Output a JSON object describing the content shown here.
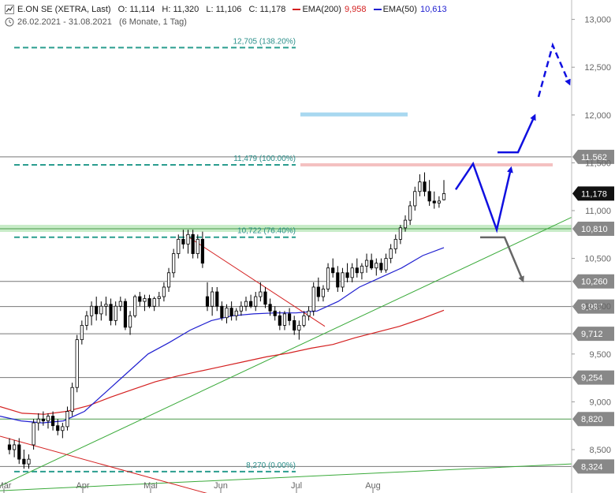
{
  "header": {
    "title": "E.ON SE (XETRA, Last)",
    "open": "O: 11,114",
    "high": "H: 11,320",
    "low": "L: 11,106",
    "close": "C: 11,178",
    "ema200_label": "EMA(200)",
    "ema200_value": "9,958",
    "ema50_label": "EMA(50)",
    "ema50_value": "10,613",
    "date_range": "26.02.2021 - 31.08.2021",
    "period": "(6 Monate, 1 Tag)"
  },
  "colors": {
    "candle_up": "#ffffff",
    "candle_down": "#000000",
    "ema200": "#d42020",
    "ema50": "#2020d0",
    "fib": "#2a9d8f",
    "support_trend": "#3aaa3a",
    "resistance_trend": "#d42020",
    "forecast_up": "#1010e0",
    "forecast_down": "#666666",
    "zone_resistance": "#f4c0c0",
    "zone_target": "#a8d8f0",
    "zone_support": "#c8ecc8"
  },
  "chart_data": {
    "type": "candlestick",
    "title": "E.ON SE (XETRA, Last)",
    "x_range": [
      "2021-02-26",
      "2021-08-31"
    ],
    "ylim": [
      8.25,
      13.2
    ],
    "y_ticks": [
      "13,000",
      "12,500",
      "12,000",
      "11,500",
      "11,000",
      "10,500",
      "10,000",
      "9,500",
      "9,000",
      "8,500"
    ],
    "x_ticks": [
      "Mär",
      "Apr",
      "Mai",
      "Jun",
      "Jul",
      "Aug"
    ],
    "levels": [
      {
        "value": 11.562,
        "label": "11,562"
      },
      {
        "value": 11.178,
        "label": "11,178",
        "current": true
      },
      {
        "value": 10.81,
        "label": "10,810"
      },
      {
        "value": 10.26,
        "label": "10,260"
      },
      {
        "value": 9.997,
        "label": "9,997"
      },
      {
        "value": 9.712,
        "label": "9,712"
      },
      {
        "value": 9.254,
        "label": "9,254"
      },
      {
        "value": 8.82,
        "label": "8,820"
      },
      {
        "value": 8.324,
        "label": "8,324"
      }
    ],
    "fibonacci": [
      {
        "value": 12.705,
        "label": "12,705 (138.20%)"
      },
      {
        "value": 11.479,
        "label": "11,479 (100.00%)"
      },
      {
        "value": 10.722,
        "label": "10,722 (76.40%)"
      },
      {
        "value": 8.27,
        "label": "8,270 (0.00%)"
      }
    ],
    "candles": [
      [
        8.55,
        8.62,
        8.45,
        8.5
      ],
      [
        8.5,
        8.6,
        8.42,
        8.55
      ],
      [
        8.55,
        8.62,
        8.35,
        8.4
      ],
      [
        8.4,
        8.5,
        8.3,
        8.35
      ],
      [
        8.35,
        8.45,
        8.3,
        8.4
      ],
      [
        8.55,
        8.82,
        8.5,
        8.78
      ],
      [
        8.78,
        8.88,
        8.7,
        8.82
      ],
      [
        8.82,
        8.9,
        8.75,
        8.8
      ],
      [
        8.8,
        8.88,
        8.72,
        8.85
      ],
      [
        8.85,
        8.9,
        8.7,
        8.75
      ],
      [
        8.75,
        8.82,
        8.65,
        8.7
      ],
      [
        8.7,
        8.78,
        8.62,
        8.74
      ],
      [
        8.74,
        8.95,
        8.7,
        8.9
      ],
      [
        8.9,
        9.2,
        8.85,
        9.15
      ],
      [
        9.15,
        9.7,
        9.1,
        9.65
      ],
      [
        9.65,
        9.85,
        9.6,
        9.8
      ],
      [
        9.8,
        9.95,
        9.75,
        9.9
      ],
      [
        9.9,
        10.05,
        9.8,
        10.0
      ],
      [
        10.0,
        10.1,
        9.85,
        9.92
      ],
      [
        9.92,
        10.05,
        9.85,
        10.0
      ],
      [
        10.0,
        10.1,
        9.9,
        10.02
      ],
      [
        10.02,
        10.08,
        9.8,
        9.85
      ],
      [
        9.85,
        10.05,
        9.8,
        10.0
      ],
      [
        10.0,
        10.1,
        9.95,
        10.05
      ],
      [
        10.05,
        10.08,
        9.75,
        9.78
      ],
      [
        9.78,
        9.95,
        9.7,
        9.9
      ],
      [
        9.9,
        10.12,
        9.88,
        10.1
      ],
      [
        10.1,
        10.15,
        10.0,
        10.05
      ],
      [
        10.05,
        10.12,
        9.95,
        10.08
      ],
      [
        10.08,
        10.12,
        9.98,
        10.0
      ],
      [
        10.0,
        10.1,
        9.95,
        10.08
      ],
      [
        10.08,
        10.15,
        10.0,
        10.1
      ],
      [
        10.1,
        10.25,
        10.05,
        10.2
      ],
      [
        10.2,
        10.4,
        10.15,
        10.35
      ],
      [
        10.35,
        10.6,
        10.3,
        10.55
      ],
      [
        10.55,
        10.75,
        10.5,
        10.7
      ],
      [
        10.7,
        10.8,
        10.6,
        10.65
      ],
      [
        10.65,
        10.8,
        10.55,
        10.75
      ],
      [
        10.75,
        10.8,
        10.5,
        10.55
      ],
      [
        10.55,
        10.75,
        10.5,
        10.7
      ],
      [
        10.7,
        10.78,
        10.4,
        10.45
      ],
      [
        10.1,
        10.25,
        9.95,
        10.0
      ],
      [
        10.0,
        10.2,
        9.9,
        10.15
      ],
      [
        10.15,
        10.2,
        9.95,
        10.0
      ],
      [
        10.0,
        10.05,
        9.85,
        9.88
      ],
      [
        9.88,
        10.02,
        9.82,
        9.98
      ],
      [
        9.98,
        10.05,
        9.85,
        9.9
      ],
      [
        9.9,
        9.98,
        9.85,
        9.95
      ],
      [
        9.95,
        10.05,
        9.9,
        10.0
      ],
      [
        10.0,
        10.1,
        9.95,
        10.05
      ],
      [
        10.05,
        10.12,
        9.98,
        10.0
      ],
      [
        10.0,
        10.15,
        9.95,
        10.1
      ],
      [
        10.1,
        10.25,
        10.05,
        10.15
      ],
      [
        10.15,
        10.2,
        9.98,
        10.02
      ],
      [
        10.02,
        10.08,
        9.9,
        9.95
      ],
      [
        9.95,
        10.0,
        9.85,
        9.9
      ],
      [
        9.9,
        9.95,
        9.75,
        9.8
      ],
      [
        9.8,
        9.95,
        9.75,
        9.92
      ],
      [
        9.92,
        9.98,
        9.8,
        9.85
      ],
      [
        9.85,
        9.9,
        9.7,
        9.75
      ],
      [
        9.75,
        9.85,
        9.65,
        9.8
      ],
      [
        9.8,
        9.95,
        9.78,
        9.9
      ],
      [
        9.9,
        10.0,
        9.85,
        9.95
      ],
      [
        9.95,
        10.25,
        9.9,
        10.2
      ],
      [
        10.2,
        10.3,
        10.05,
        10.1
      ],
      [
        10.1,
        10.22,
        10.05,
        10.18
      ],
      [
        10.18,
        10.45,
        10.15,
        10.4
      ],
      [
        10.4,
        10.5,
        10.3,
        10.35
      ],
      [
        10.35,
        10.42,
        10.15,
        10.2
      ],
      [
        10.2,
        10.4,
        10.15,
        10.35
      ],
      [
        10.35,
        10.45,
        10.25,
        10.3
      ],
      [
        10.3,
        10.45,
        10.25,
        10.4
      ],
      [
        10.4,
        10.5,
        10.3,
        10.35
      ],
      [
        10.35,
        10.45,
        10.28,
        10.42
      ],
      [
        10.42,
        10.55,
        10.35,
        10.48
      ],
      [
        10.48,
        10.55,
        10.38,
        10.4
      ],
      [
        10.4,
        10.5,
        10.32,
        10.45
      ],
      [
        10.45,
        10.5,
        10.35,
        10.38
      ],
      [
        10.38,
        10.55,
        10.35,
        10.5
      ],
      [
        10.5,
        10.65,
        10.45,
        10.6
      ],
      [
        10.6,
        10.75,
        10.55,
        10.7
      ],
      [
        10.7,
        10.85,
        10.65,
        10.82
      ],
      [
        10.82,
        10.95,
        10.78,
        10.9
      ],
      [
        10.9,
        11.1,
        10.85,
        11.05
      ],
      [
        11.05,
        11.25,
        11.0,
        11.2
      ],
      [
        11.2,
        11.38,
        11.15,
        11.3
      ],
      [
        11.3,
        11.4,
        11.15,
        11.2
      ],
      [
        11.2,
        11.32,
        11.05,
        11.1
      ],
      [
        11.1,
        11.2,
        11.02,
        11.08
      ],
      [
        11.08,
        11.15,
        11.03,
        11.1
      ],
      [
        11.114,
        11.32,
        11.106,
        11.178
      ]
    ],
    "ema50": [
      8.85,
      8.8,
      8.78,
      8.8,
      8.9,
      9.1,
      9.3,
      9.5,
      9.62,
      9.75,
      9.85,
      9.9,
      9.92,
      9.93,
      9.93,
      9.95,
      10.05,
      10.2,
      10.3,
      10.4,
      10.53,
      10.613
    ],
    "ema200": [
      8.95,
      8.88,
      8.87,
      8.9,
      8.96,
      9.05,
      9.13,
      9.21,
      9.27,
      9.32,
      9.37,
      9.42,
      9.47,
      9.51,
      9.56,
      9.6,
      9.67,
      9.73,
      9.79,
      9.87,
      9.958
    ],
    "forecast_primary": [
      "up to 11,479",
      "pullback to 10,810",
      "breakout above 11,562",
      "target 12,705"
    ],
    "forecast_alternative": [
      "break below 10,722",
      "fall to 10,260"
    ]
  }
}
